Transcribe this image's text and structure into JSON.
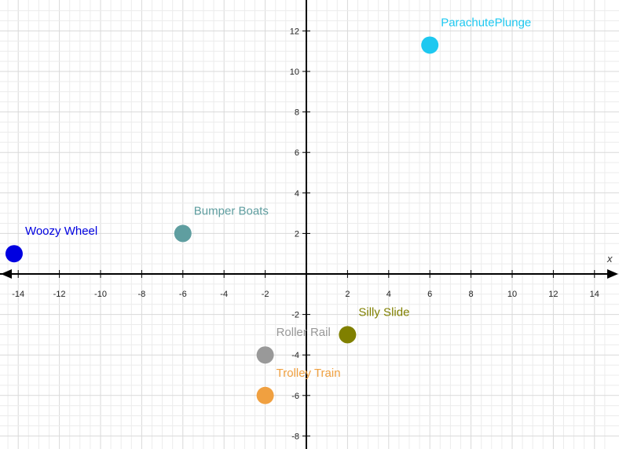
{
  "chart_data": {
    "type": "scatter",
    "xlabel": "x",
    "ylabel": "",
    "xlim": [
      -14.5,
      14.8
    ],
    "ylim": [
      -8.2,
      13.4
    ],
    "grid": true,
    "grid_minor_step": 0.5,
    "x_tick_values": [
      -14,
      -12,
      -10,
      -8,
      -6,
      -4,
      -2,
      2,
      4,
      6,
      8,
      10,
      12,
      14
    ],
    "y_tick_values": [
      12,
      10,
      8,
      6,
      4,
      2,
      -2,
      -4,
      -6,
      -8
    ],
    "points": [
      {
        "label": "ParachutePlunge",
        "x": 6,
        "y": 11.3,
        "color": "#1ec8f0"
      },
      {
        "label": "Woozy Wheel",
        "x": -14.2,
        "y": 1,
        "color": "#0000e0"
      },
      {
        "label": "Bumper Boats",
        "x": -6,
        "y": 2,
        "color": "#5f9ea0"
      },
      {
        "label": "Silly Slide",
        "x": 2,
        "y": -3,
        "color": "#808000"
      },
      {
        "label": "Roller Rail",
        "x": -2,
        "y": -4,
        "color": "#999999"
      },
      {
        "label": "Trolley Train",
        "x": -2,
        "y": -6,
        "color": "#f0a040"
      }
    ]
  }
}
